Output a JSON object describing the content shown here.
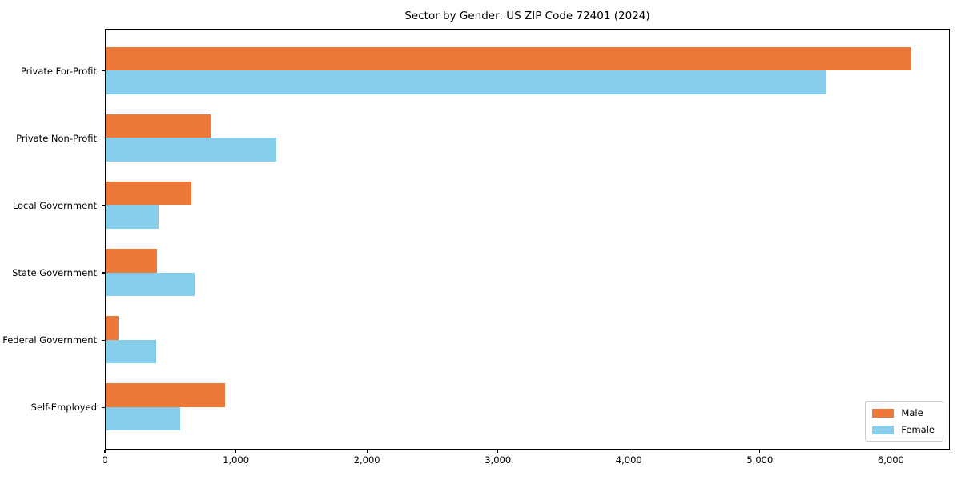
{
  "title": "Sector by Gender: US ZIP Code 72401 (2024)",
  "colors": {
    "male": "#ec7839",
    "female": "#87ceeb",
    "axis": "#000000",
    "legend_border": "#cccccc",
    "background": "#ffffff"
  },
  "chart_data": {
    "type": "bar",
    "orientation": "horizontal",
    "title": "Sector by Gender: US ZIP Code 72401 (2024)",
    "categories": [
      "Private For-Profit",
      "Private Non-Profit",
      "Local Government",
      "State Government",
      "Federal Government",
      "Self-Employed"
    ],
    "series": [
      {
        "name": "Male",
        "color": "#ec7839",
        "values": [
          6150,
          800,
          655,
          390,
          100,
          910
        ]
      },
      {
        "name": "Female",
        "color": "#87ceeb",
        "values": [
          5500,
          1300,
          405,
          680,
          385,
          570
        ]
      }
    ],
    "xlabel": "",
    "ylabel": "",
    "xlim": [
      0,
      6450
    ],
    "xticks": [
      0,
      1000,
      2000,
      3000,
      4000,
      5000,
      6000
    ],
    "xtick_labels": [
      "0",
      "1,000",
      "2,000",
      "3,000",
      "4,000",
      "5,000",
      "6,000"
    ],
    "grid": false,
    "legend": {
      "position": "lower right",
      "entries": [
        "Male",
        "Female"
      ]
    }
  }
}
